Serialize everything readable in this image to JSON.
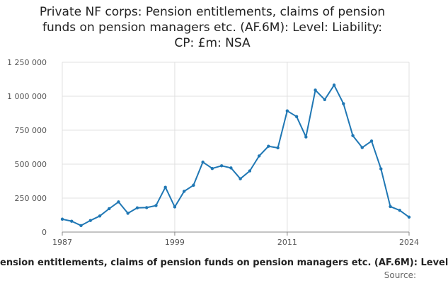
{
  "chart_data": {
    "type": "line",
    "title_lines": [
      "Private NF corps: Pension entitlements, claims of pension",
      "funds on pension managers etc. (AF.6M): Level: Liability:",
      "CP: £m: NSA"
    ],
    "xlabel": "",
    "ylabel": "",
    "x_ticks": [
      "1987",
      "1999",
      "2011",
      "2024"
    ],
    "y_ticks": [
      "1 250 000",
      "1 000 000",
      "750 000",
      "500 000",
      "250 000",
      "0"
    ],
    "xlim": [
      1987,
      2024
    ],
    "ylim": [
      0,
      1250000
    ],
    "grid": true,
    "legend_text": "ension entitlements, claims of pension funds on pension managers etc. (AF.6M): Level",
    "source_text": "Source:",
    "line_color": "#1f77b4",
    "series": [
      {
        "x": [
          1987,
          1988,
          1989,
          1990,
          1991,
          1992,
          1993,
          1994,
          1995,
          1996,
          1997,
          1998,
          1999,
          2000,
          2001,
          2002,
          2003,
          2004,
          2005,
          2006,
          2007,
          2008,
          2009,
          2010,
          2011,
          2012,
          2013,
          2014,
          2015,
          2016,
          2017,
          2018,
          2019,
          2020,
          2021,
          2022,
          2023,
          2024
        ],
        "values": [
          95000,
          80000,
          48000,
          85000,
          118000,
          172000,
          222000,
          138000,
          178000,
          180000,
          195000,
          330000,
          185000,
          300000,
          345000,
          515000,
          468000,
          488000,
          472000,
          392000,
          450000,
          560000,
          632000,
          620000,
          892000,
          850000,
          700000,
          1045000,
          975000,
          1082000,
          945000,
          710000,
          622000,
          670000,
          465000,
          188000,
          160000,
          110000
        ]
      }
    ]
  }
}
